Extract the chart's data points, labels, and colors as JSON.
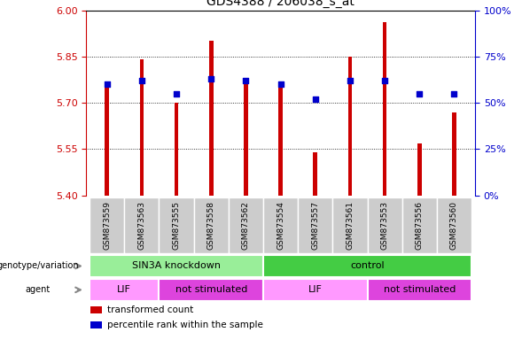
{
  "title": "GDS4388 / 206038_s_at",
  "samples": [
    "GSM873559",
    "GSM873563",
    "GSM873555",
    "GSM873558",
    "GSM873562",
    "GSM873554",
    "GSM873557",
    "GSM873561",
    "GSM873553",
    "GSM873556",
    "GSM873560"
  ],
  "bar_values": [
    5.77,
    5.84,
    5.7,
    5.9,
    5.76,
    5.77,
    5.54,
    5.85,
    5.96,
    5.57,
    5.67
  ],
  "percentile_values": [
    60,
    62,
    55,
    63,
    62,
    60,
    52,
    62,
    62,
    55,
    55
  ],
  "ylim_left": [
    5.4,
    6.0
  ],
  "ylim_right": [
    0,
    100
  ],
  "yticks_left": [
    5.4,
    5.55,
    5.7,
    5.85,
    6.0
  ],
  "yticks_right": [
    0,
    25,
    50,
    75,
    100
  ],
  "ytick_labels_right": [
    "0%",
    "25%",
    "50%",
    "75%",
    "100%"
  ],
  "bar_color": "#cc0000",
  "dot_color": "#0000cc",
  "bar_width": 0.12,
  "groups": [
    {
      "label": "SIN3A knockdown",
      "start": 0,
      "end": 5,
      "color": "#99ee99"
    },
    {
      "label": "control",
      "start": 5,
      "end": 11,
      "color": "#44cc44"
    }
  ],
  "agents": [
    {
      "label": "LIF",
      "start": 0,
      "end": 2,
      "color": "#ff99ff"
    },
    {
      "label": "not stimulated",
      "start": 2,
      "end": 5,
      "color": "#dd44dd"
    },
    {
      "label": "LIF",
      "start": 5,
      "end": 8,
      "color": "#ff99ff"
    },
    {
      "label": "not stimulated",
      "start": 8,
      "end": 11,
      "color": "#dd44dd"
    }
  ],
  "row_labels": [
    "genotype/variation",
    "agent"
  ],
  "legend_items": [
    {
      "label": "transformed count",
      "color": "#cc0000"
    },
    {
      "label": "percentile rank within the sample",
      "color": "#0000cc"
    }
  ],
  "background_color": "#ffffff",
  "tick_color_left": "#cc0000",
  "tick_color_right": "#0000cc",
  "sample_box_color": "#cccccc",
  "arrow_color": "#888888"
}
